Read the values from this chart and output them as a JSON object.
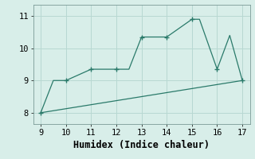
{
  "xlabel": "Humidex (Indice chaleur)",
  "line1_x": [
    9,
    9.5,
    10,
    11,
    12,
    12.5,
    13,
    14,
    15,
    15.3,
    16,
    16.5,
    17
  ],
  "line1_y": [
    8.0,
    9.0,
    9.0,
    9.35,
    9.35,
    9.35,
    10.35,
    10.35,
    10.9,
    10.9,
    9.35,
    10.4,
    9.0
  ],
  "line2_x": [
    9,
    17
  ],
  "line2_y": [
    8.0,
    9.0
  ],
  "marker_x": [
    9,
    10,
    11,
    12,
    13,
    14,
    15,
    16,
    17
  ],
  "marker_y": [
    8.0,
    9.0,
    9.35,
    9.35,
    10.35,
    10.35,
    10.9,
    9.35,
    9.0
  ],
  "xlim": [
    8.7,
    17.3
  ],
  "ylim": [
    7.65,
    11.35
  ],
  "xticks": [
    9,
    10,
    11,
    12,
    13,
    14,
    15,
    16,
    17
  ],
  "yticks": [
    8,
    9,
    10,
    11
  ],
  "line_color": "#2a7a6a",
  "bg_color": "#d8eee9",
  "grid_color": "#b8d8d2",
  "tick_fontsize": 7.5,
  "label_fontsize": 8.5
}
